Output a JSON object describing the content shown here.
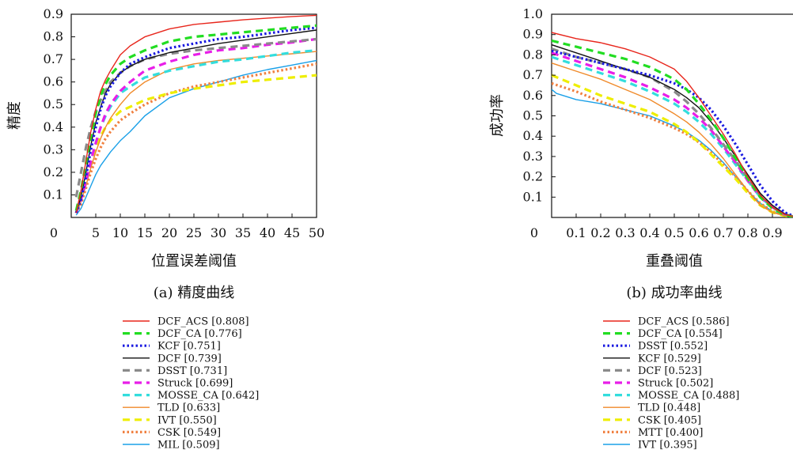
{
  "chart_data": [
    {
      "type": "line",
      "caption": "(a) 精度曲线",
      "xlabel": "位置误差阈值",
      "ylabel": "精度",
      "xlim": [
        0,
        50
      ],
      "ylim": [
        0,
        0.9
      ],
      "xticks": [
        "0",
        "5",
        "10",
        "15",
        "20",
        "25",
        "30",
        "35",
        "40",
        "45",
        "50"
      ],
      "yticks": [
        "0.1",
        "0.2",
        "0.3",
        "0.4",
        "0.5",
        "0.6",
        "0.7",
        "0.8",
        "0.9"
      ],
      "legend_position": "below",
      "series": [
        {
          "label": "DCF_ACS [0.808]",
          "color": "#e8261c",
          "style": "solid",
          "x": [
            1,
            2,
            3,
            4,
            5,
            6,
            7,
            8,
            10,
            12,
            15,
            20,
            25,
            30,
            35,
            40,
            45,
            50
          ],
          "y": [
            0.02,
            0.12,
            0.25,
            0.38,
            0.48,
            0.56,
            0.61,
            0.65,
            0.72,
            0.76,
            0.8,
            0.835,
            0.855,
            0.865,
            0.875,
            0.883,
            0.89,
            0.895
          ]
        },
        {
          "label": "DCF_CA [0.776]",
          "color": "#22dd22",
          "style": "dashed",
          "x": [
            1,
            2,
            3,
            4,
            5,
            6,
            7,
            8,
            10,
            12,
            15,
            20,
            25,
            30,
            35,
            40,
            45,
            50
          ],
          "y": [
            0.03,
            0.12,
            0.24,
            0.36,
            0.46,
            0.54,
            0.59,
            0.63,
            0.68,
            0.71,
            0.74,
            0.78,
            0.8,
            0.81,
            0.82,
            0.83,
            0.84,
            0.85
          ]
        },
        {
          "label": "KCF [0.751]",
          "color": "#1a1ae0",
          "style": "dotted",
          "x": [
            1,
            2,
            3,
            4,
            5,
            6,
            7,
            8,
            10,
            12,
            15,
            20,
            25,
            30,
            35,
            40,
            45,
            50
          ],
          "y": [
            0.02,
            0.08,
            0.18,
            0.3,
            0.4,
            0.48,
            0.54,
            0.58,
            0.64,
            0.68,
            0.71,
            0.75,
            0.77,
            0.79,
            0.8,
            0.815,
            0.83,
            0.84
          ]
        },
        {
          "label": "DCF [0.739]",
          "color": "#111111",
          "style": "solid",
          "x": [
            1,
            2,
            3,
            4,
            5,
            6,
            7,
            8,
            10,
            12,
            15,
            20,
            25,
            30,
            35,
            40,
            45,
            50
          ],
          "y": [
            0.02,
            0.09,
            0.2,
            0.32,
            0.42,
            0.49,
            0.55,
            0.59,
            0.64,
            0.67,
            0.7,
            0.73,
            0.75,
            0.77,
            0.785,
            0.8,
            0.815,
            0.83
          ]
        },
        {
          "label": "DSST [0.731]",
          "color": "#8a8a8a",
          "style": "dashed",
          "x": [
            1,
            2,
            3,
            4,
            5,
            6,
            7,
            8,
            10,
            12,
            15,
            20,
            25,
            30,
            35,
            40,
            45,
            50
          ],
          "y": [
            0.09,
            0.2,
            0.31,
            0.4,
            0.47,
            0.52,
            0.56,
            0.6,
            0.64,
            0.67,
            0.7,
            0.725,
            0.74,
            0.75,
            0.76,
            0.77,
            0.78,
            0.79
          ]
        },
        {
          "label": "Struck [0.699]",
          "color": "#e81ee8",
          "style": "dashed",
          "x": [
            1,
            2,
            3,
            4,
            5,
            6,
            7,
            8,
            10,
            12,
            15,
            20,
            25,
            30,
            35,
            40,
            45,
            50
          ],
          "y": [
            0.02,
            0.08,
            0.16,
            0.25,
            0.33,
            0.4,
            0.46,
            0.5,
            0.56,
            0.6,
            0.65,
            0.69,
            0.72,
            0.74,
            0.75,
            0.765,
            0.775,
            0.79
          ]
        },
        {
          "label": "MOSSE_CA [0.642]",
          "color": "#33dddd",
          "style": "dashed",
          "x": [
            1,
            2,
            3,
            4,
            5,
            6,
            7,
            8,
            10,
            12,
            15,
            20,
            25,
            30,
            35,
            40,
            45,
            50
          ],
          "y": [
            0.02,
            0.08,
            0.16,
            0.25,
            0.33,
            0.4,
            0.45,
            0.49,
            0.55,
            0.58,
            0.62,
            0.65,
            0.67,
            0.69,
            0.7,
            0.715,
            0.73,
            0.74
          ]
        },
        {
          "label": "TLD [0.633]",
          "color": "#f08a2a",
          "style": "solid",
          "x": [
            1,
            2,
            3,
            4,
            5,
            6,
            7,
            8,
            10,
            12,
            15,
            20,
            25,
            30,
            35,
            40,
            45,
            50
          ],
          "y": [
            0.02,
            0.07,
            0.14,
            0.22,
            0.29,
            0.35,
            0.4,
            0.44,
            0.5,
            0.55,
            0.6,
            0.655,
            0.68,
            0.695,
            0.705,
            0.715,
            0.725,
            0.735
          ]
        },
        {
          "label": "IVT [0.550]",
          "color": "#eeee00",
          "style": "dashed",
          "x": [
            1,
            2,
            3,
            4,
            5,
            6,
            7,
            8,
            10,
            12,
            15,
            20,
            25,
            30,
            35,
            40,
            45,
            50
          ],
          "y": [
            0.02,
            0.08,
            0.16,
            0.24,
            0.31,
            0.36,
            0.4,
            0.43,
            0.47,
            0.49,
            0.52,
            0.55,
            0.57,
            0.585,
            0.6,
            0.61,
            0.62,
            0.63
          ]
        },
        {
          "label": "CSK [0.549]",
          "color": "#f08040",
          "style": "dotted",
          "x": [
            1,
            2,
            3,
            4,
            5,
            6,
            7,
            8,
            10,
            12,
            15,
            20,
            25,
            30,
            35,
            40,
            45,
            50
          ],
          "y": [
            0.02,
            0.06,
            0.13,
            0.2,
            0.26,
            0.31,
            0.35,
            0.38,
            0.43,
            0.46,
            0.5,
            0.55,
            0.58,
            0.6,
            0.62,
            0.64,
            0.66,
            0.68
          ]
        },
        {
          "label": "MIL [0.509]",
          "color": "#1aa0e8",
          "style": "solid",
          "x": [
            1,
            2,
            3,
            4,
            5,
            6,
            7,
            8,
            10,
            12,
            15,
            20,
            25,
            30,
            35,
            40,
            45,
            50
          ],
          "y": [
            0.01,
            0.04,
            0.09,
            0.14,
            0.19,
            0.23,
            0.26,
            0.29,
            0.34,
            0.38,
            0.45,
            0.53,
            0.57,
            0.6,
            0.63,
            0.655,
            0.675,
            0.695
          ]
        }
      ]
    },
    {
      "type": "line",
      "caption": "(b) 成功率曲线",
      "xlabel": "重叠阈值",
      "ylabel": "成功率",
      "xlim": [
        0,
        1
      ],
      "ylim": [
        0,
        1.0
      ],
      "xticks": [
        "0",
        "0.1",
        "0.2",
        "0.3",
        "0.4",
        "0.5",
        "0.6",
        "0.7",
        "0.8",
        "0.9"
      ],
      "yticks": [
        "0.1",
        "0.2",
        "0.3",
        "0.4",
        "0.5",
        "0.6",
        "0.7",
        "0.8",
        "0.9",
        "1.0"
      ],
      "legend_position": "below",
      "series": [
        {
          "label": "DCF_ACS [0.586]",
          "color": "#e8261c",
          "style": "solid",
          "x": [
            0.0,
            0.1,
            0.2,
            0.3,
            0.4,
            0.5,
            0.55,
            0.6,
            0.65,
            0.7,
            0.75,
            0.8,
            0.85,
            0.9,
            0.95,
            1.0
          ],
          "y": [
            0.91,
            0.88,
            0.86,
            0.83,
            0.79,
            0.73,
            0.67,
            0.59,
            0.5,
            0.41,
            0.31,
            0.2,
            0.11,
            0.05,
            0.015,
            0.0
          ]
        },
        {
          "label": "DCF_CA [0.554]",
          "color": "#22dd22",
          "style": "dashed",
          "x": [
            0.0,
            0.1,
            0.2,
            0.3,
            0.4,
            0.5,
            0.55,
            0.6,
            0.65,
            0.7,
            0.75,
            0.8,
            0.85,
            0.9,
            0.95,
            1.0
          ],
          "y": [
            0.87,
            0.84,
            0.81,
            0.78,
            0.74,
            0.68,
            0.63,
            0.56,
            0.48,
            0.39,
            0.29,
            0.19,
            0.1,
            0.045,
            0.012,
            0.0
          ]
        },
        {
          "label": "DSST [0.552]",
          "color": "#1a1ae0",
          "style": "dotted",
          "x": [
            0.0,
            0.1,
            0.2,
            0.3,
            0.4,
            0.5,
            0.55,
            0.6,
            0.65,
            0.7,
            0.75,
            0.8,
            0.85,
            0.9,
            0.95,
            1.0
          ],
          "y": [
            0.82,
            0.79,
            0.76,
            0.73,
            0.7,
            0.66,
            0.63,
            0.59,
            0.53,
            0.45,
            0.36,
            0.26,
            0.16,
            0.08,
            0.025,
            0.0
          ]
        },
        {
          "label": "KCF [0.529]",
          "color": "#111111",
          "style": "solid",
          "x": [
            0.0,
            0.1,
            0.2,
            0.3,
            0.4,
            0.5,
            0.55,
            0.6,
            0.65,
            0.7,
            0.75,
            0.8,
            0.85,
            0.9,
            0.95,
            1.0
          ],
          "y": [
            0.85,
            0.81,
            0.77,
            0.73,
            0.69,
            0.63,
            0.59,
            0.54,
            0.47,
            0.39,
            0.3,
            0.21,
            0.12,
            0.06,
            0.018,
            0.0
          ]
        },
        {
          "label": "DCF [0.523]",
          "color": "#8a8a8a",
          "style": "dashed",
          "x": [
            0.0,
            0.1,
            0.2,
            0.3,
            0.4,
            0.5,
            0.55,
            0.6,
            0.65,
            0.7,
            0.75,
            0.8,
            0.85,
            0.9,
            0.95,
            1.0
          ],
          "y": [
            0.83,
            0.79,
            0.76,
            0.73,
            0.69,
            0.62,
            0.57,
            0.51,
            0.44,
            0.36,
            0.28,
            0.19,
            0.11,
            0.05,
            0.015,
            0.0
          ]
        },
        {
          "label": "Struck [0.502]",
          "color": "#e81ee8",
          "style": "dashed",
          "x": [
            0.0,
            0.1,
            0.2,
            0.3,
            0.4,
            0.5,
            0.55,
            0.6,
            0.65,
            0.7,
            0.75,
            0.8,
            0.85,
            0.9,
            0.95,
            1.0
          ],
          "y": [
            0.81,
            0.77,
            0.73,
            0.69,
            0.64,
            0.58,
            0.54,
            0.49,
            0.43,
            0.35,
            0.27,
            0.18,
            0.1,
            0.05,
            0.015,
            0.0
          ]
        },
        {
          "label": "MOSSE_CA [0.488]",
          "color": "#33dddd",
          "style": "dashed",
          "x": [
            0.0,
            0.1,
            0.2,
            0.3,
            0.4,
            0.5,
            0.55,
            0.6,
            0.65,
            0.7,
            0.75,
            0.8,
            0.85,
            0.9,
            0.95,
            1.0
          ],
          "y": [
            0.79,
            0.75,
            0.71,
            0.67,
            0.62,
            0.56,
            0.52,
            0.47,
            0.41,
            0.34,
            0.26,
            0.18,
            0.1,
            0.05,
            0.015,
            0.0
          ]
        },
        {
          "label": "TLD [0.448]",
          "color": "#f08a2a",
          "style": "solid",
          "x": [
            0.0,
            0.1,
            0.2,
            0.3,
            0.4,
            0.5,
            0.55,
            0.6,
            0.65,
            0.7,
            0.75,
            0.8,
            0.85,
            0.9,
            0.95,
            1.0
          ],
          "y": [
            0.76,
            0.72,
            0.68,
            0.63,
            0.58,
            0.51,
            0.47,
            0.42,
            0.36,
            0.29,
            0.21,
            0.13,
            0.06,
            0.025,
            0.008,
            0.0
          ]
        },
        {
          "label": "CSK [0.405]",
          "color": "#eeee00",
          "style": "dashed",
          "x": [
            0.0,
            0.1,
            0.2,
            0.3,
            0.4,
            0.5,
            0.55,
            0.6,
            0.65,
            0.7,
            0.75,
            0.8,
            0.85,
            0.9,
            0.95,
            1.0
          ],
          "y": [
            0.7,
            0.65,
            0.6,
            0.56,
            0.52,
            0.46,
            0.42,
            0.37,
            0.31,
            0.25,
            0.19,
            0.12,
            0.06,
            0.025,
            0.008,
            0.0
          ]
        },
        {
          "label": "MTT [0.400]",
          "color": "#f08040",
          "style": "dotted",
          "x": [
            0.0,
            0.1,
            0.2,
            0.3,
            0.4,
            0.5,
            0.55,
            0.6,
            0.65,
            0.7,
            0.75,
            0.8,
            0.85,
            0.9,
            0.95,
            1.0
          ],
          "y": [
            0.66,
            0.62,
            0.57,
            0.53,
            0.49,
            0.44,
            0.41,
            0.37,
            0.32,
            0.26,
            0.2,
            0.13,
            0.07,
            0.03,
            0.009,
            0.0
          ]
        },
        {
          "label": "IVT [0.395]",
          "color": "#1aa0e8",
          "style": "solid",
          "x": [
            0.0,
            0.02,
            0.1,
            0.2,
            0.3,
            0.4,
            0.5,
            0.55,
            0.6,
            0.65,
            0.7,
            0.75,
            0.8,
            0.85,
            0.9,
            0.95,
            1.0
          ],
          "y": [
            0.63,
            0.61,
            0.58,
            0.56,
            0.53,
            0.5,
            0.45,
            0.42,
            0.38,
            0.33,
            0.27,
            0.2,
            0.13,
            0.07,
            0.03,
            0.009,
            0.0
          ]
        }
      ]
    }
  ]
}
